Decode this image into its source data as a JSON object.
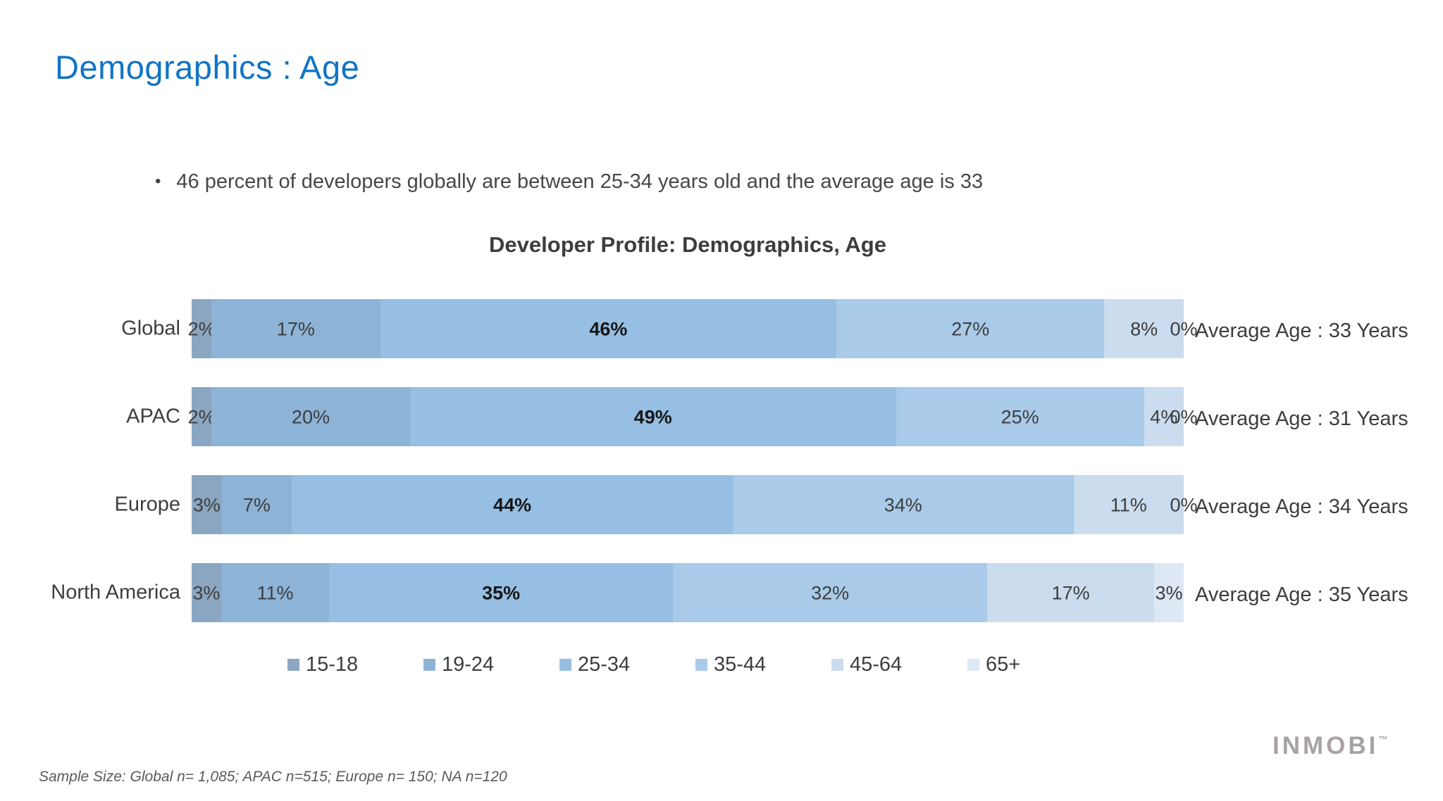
{
  "slide": {
    "title": "Demographics : Age",
    "bullet_marker": "•",
    "bullet_text": "46 percent of developers globally are between 25-34 years old and the average age is 33",
    "footer": "Sample Size: Global  n= 1,085; APAC n=515; Europe n= 150; NA n=120",
    "logo_text": "INMOBI",
    "logo_tm": "™",
    "accent_color": "#1274C5"
  },
  "chart_data": {
    "type": "bar",
    "orientation": "horizontal",
    "stacked": true,
    "percent": true,
    "title": "Developer Profile: Demographics, Age",
    "categories": [
      "Global",
      "APAC",
      "Europe",
      "North America"
    ],
    "series": [
      {
        "name": "15-18",
        "color": "#8BA6C1",
        "values": [
          2,
          2,
          3,
          3
        ]
      },
      {
        "name": "19-24",
        "color": "#8DB3D7",
        "values": [
          17,
          20,
          7,
          11
        ]
      },
      {
        "name": "25-34",
        "color": "#96BFE3",
        "values": [
          46,
          49,
          44,
          35
        ]
      },
      {
        "name": "35-44",
        "color": "#A9CAE8",
        "values": [
          27,
          25,
          34,
          32
        ]
      },
      {
        "name": "45-64",
        "color": "#CBDCEF",
        "values": [
          8,
          4,
          11,
          17
        ]
      },
      {
        "name": "65+",
        "color": "#DEE8F5",
        "values": [
          0,
          0,
          0,
          3
        ]
      }
    ],
    "row_annotations": [
      "Average Age : 33 Years",
      "Average Age : 31 Years",
      "Average Age : 34 Years",
      "Average Age : 35 Years"
    ],
    "emphasized_series": "25-34",
    "value_suffix": "%",
    "xlim": [
      0,
      100
    ],
    "legend_position": "bottom",
    "grid": false
  }
}
